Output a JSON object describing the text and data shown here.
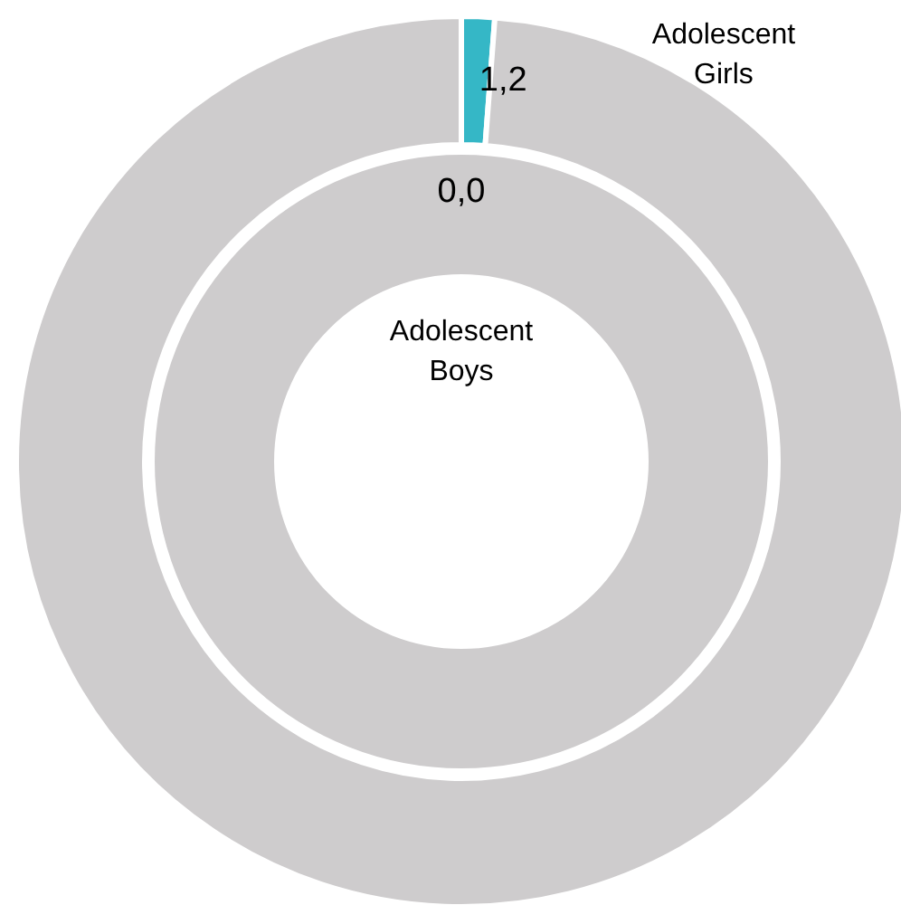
{
  "chart_data": [
    {
      "type": "donut",
      "categories": [
        null,
        null
      ],
      "series": [
        {
          "name": "Adolescent Girls",
          "values": [
            1.2,
            98.8
          ],
          "colors": [
            "#35b7c6",
            "#cecccd"
          ],
          "value_labels": [
            "1,2",
            null
          ]
        }
      ]
    },
    {
      "type": "donut",
      "categories": [
        null,
        null
      ],
      "series": [
        {
          "name": "Adolescent Boys",
          "values": [
            0.0,
            100
          ],
          "colors": [
            "#35b7c6",
            "#cecccd"
          ],
          "value_labels": [
            "0,0",
            null
          ]
        }
      ]
    }
  ]
}
